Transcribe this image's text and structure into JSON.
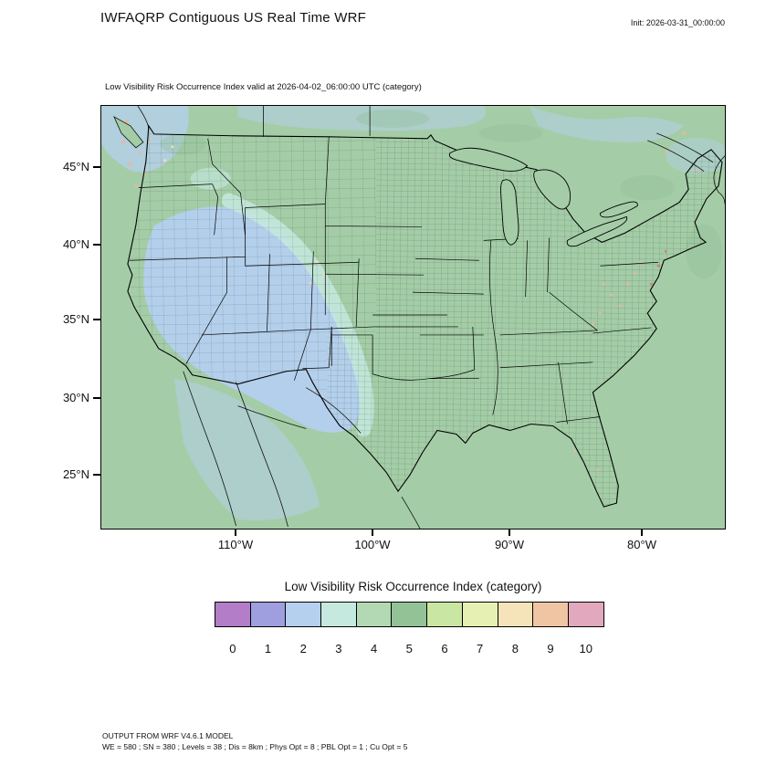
{
  "header": {
    "title": "IWFAQRP Contiguous US Real Time WRF",
    "init_label": "Init: 2026-03-31_00:00:00"
  },
  "plot": {
    "subtitle": "Low Visibility Risk Occurrence Index valid at 2026-04-02_06:00:00 UTC   (category)",
    "lat_ticks": [
      "45°N",
      "40°N",
      "35°N",
      "30°N",
      "25°N"
    ],
    "lon_ticks": [
      "110°W",
      "100°W",
      "90°W",
      "80°W"
    ]
  },
  "colorbar": {
    "title": "Low Visibility Risk Occurrence Index  (category)",
    "categories": [
      "0",
      "1",
      "2",
      "3",
      "4",
      "5",
      "6",
      "7",
      "8",
      "9",
      "10"
    ],
    "colors": [
      "#b47dc8",
      "#9f9fdf",
      "#b5cfee",
      "#c5e9de",
      "#b2d9b4",
      "#93c296",
      "#c9e6a2",
      "#e7f0b3",
      "#f5e4ba",
      "#f0c5a4",
      "#e2a8bd"
    ]
  },
  "map_colors": {
    "field_green": "#a4cda7",
    "field_blue": "#b5cfee",
    "field_cyan": "#c5e9de",
    "field_dark_green": "#8fbc94",
    "speck_salmon": "#eeb49a",
    "speck_tan": "#f2ddb4",
    "speck_red": "#d97b6c"
  },
  "footer": {
    "line1": "OUTPUT FROM WRF V4.6.1 MODEL",
    "line2": "WE = 580 ; SN = 380 ; Levels = 38 ; Dis = 8km ; Phys Opt = 8 ; PBL Opt = 1 ; Cu Opt = 5"
  },
  "chart_data": {
    "type": "heatmap",
    "title": "Low Visibility Risk Occurrence Index valid at 2026-04-02_06:00:00 UTC (category)",
    "legend_title": "Low Visibility Risk Occurrence Index  (category)",
    "legend_categories": [
      0,
      1,
      2,
      3,
      4,
      5,
      6,
      7,
      8,
      9,
      10
    ],
    "x_ticks": [
      "110°W",
      "100°W",
      "90°W",
      "80°W"
    ],
    "y_ticks": [
      "45°N",
      "40°N",
      "35°N",
      "30°N",
      "25°N"
    ],
    "regions": [
      {
        "area": "eastern and central US, Canada, Gulf and ocean background",
        "category": "4-5 (green)"
      },
      {
        "area": "Great Basin / Southwest: NV, UT, AZ, NM, W Colorado, W Texas, interior California, NW Mexico",
        "category": "1-2 (light blue)"
      },
      {
        "area": "transition fringe along Rockies / high plains",
        "category": "3 (pale cyan)"
      },
      {
        "area": "scattered specks: Pacific NW coast, Appalachians, E seaboard",
        "category": "8-10 (tan/salmon/pink)"
      }
    ]
  }
}
